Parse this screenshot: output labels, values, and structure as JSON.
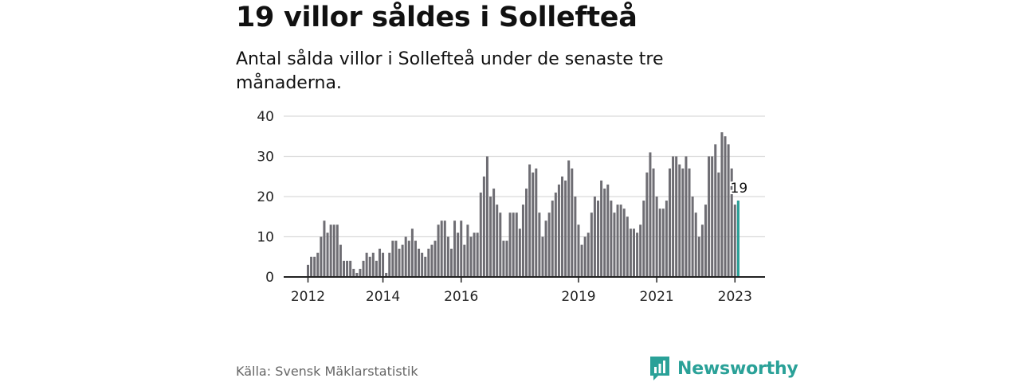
{
  "title": "19 villor såldes i Sollefteå",
  "subtitle": "Antal sålda villor i Sollefteå under de senaste tre månaderna.",
  "source": "Källa: Svensk Mäklarstatistik",
  "brand": "Newsworthy",
  "colors": {
    "bar": "#6e6d73",
    "highlight": "#2aa198",
    "grid": "#d9d9d9",
    "axis": "#222222"
  },
  "chart_data": {
    "type": "bar",
    "ylim": [
      0,
      40
    ],
    "yticks": [
      0,
      10,
      20,
      30,
      40
    ],
    "xticks": [
      {
        "label": "2012",
        "index": 0
      },
      {
        "label": "2014",
        "index": 23
      },
      {
        "label": "2016",
        "index": 47
      },
      {
        "label": "2019",
        "index": 83
      },
      {
        "label": "2021",
        "index": 107
      },
      {
        "label": "2023",
        "index": 131
      }
    ],
    "values": [
      3,
      5,
      5,
      6,
      10,
      14,
      11,
      13,
      13,
      13,
      8,
      4,
      4,
      4,
      2,
      1,
      2,
      4,
      6,
      5,
      6,
      4,
      7,
      6,
      1,
      6,
      9,
      9,
      7,
      8,
      10,
      9,
      12,
      9,
      7,
      6,
      5,
      7,
      8,
      9,
      13,
      14,
      14,
      10,
      7,
      14,
      11,
      14,
      8,
      13,
      10,
      11,
      11,
      21,
      25,
      30,
      20,
      22,
      18,
      16,
      9,
      9,
      16,
      16,
      16,
      12,
      18,
      22,
      28,
      26,
      27,
      16,
      10,
      14,
      16,
      19,
      21,
      23,
      25,
      24,
      29,
      27,
      20,
      13,
      8,
      10,
      11,
      16,
      20,
      19,
      24,
      22,
      23,
      19,
      16,
      18,
      18,
      17,
      15,
      12,
      12,
      11,
      13,
      19,
      26,
      31,
      27,
      20,
      17,
      17,
      19,
      27,
      30,
      30,
      28,
      27,
      30,
      27,
      20,
      16,
      10,
      13,
      18,
      30,
      30,
      33,
      26,
      36,
      35,
      33,
      27,
      18,
      19
    ],
    "highlight_index": 132,
    "highlight_label": "19"
  }
}
